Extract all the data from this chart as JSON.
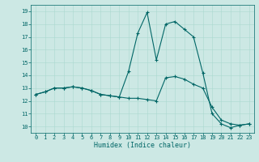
{
  "title": "",
  "xlabel": "Humidex (Indice chaleur)",
  "background_color": "#cce8e4",
  "line_color": "#006666",
  "xlim": [
    -0.5,
    23.5
  ],
  "ylim": [
    9.5,
    19.5
  ],
  "xticks": [
    0,
    1,
    2,
    3,
    4,
    5,
    6,
    7,
    8,
    9,
    10,
    11,
    12,
    13,
    14,
    15,
    16,
    17,
    18,
    19,
    20,
    21,
    22,
    23
  ],
  "yticks": [
    10,
    11,
    12,
    13,
    14,
    15,
    16,
    17,
    18,
    19
  ],
  "line1_x": [
    0,
    1,
    2,
    3,
    4,
    5,
    6,
    7,
    8,
    9,
    10,
    11,
    12,
    13,
    14,
    15,
    16,
    17,
    18,
    19,
    20,
    21,
    22,
    23
  ],
  "line1_y": [
    12.5,
    12.7,
    13.0,
    13.0,
    13.1,
    13.0,
    12.8,
    12.5,
    12.4,
    12.3,
    14.3,
    17.3,
    18.9,
    15.2,
    18.0,
    18.2,
    17.6,
    17.0,
    14.2,
    11.0,
    10.2,
    9.9,
    10.1,
    10.2
  ],
  "line2_x": [
    0,
    1,
    2,
    3,
    4,
    5,
    6,
    7,
    8,
    9,
    10,
    11,
    12,
    13,
    14,
    15,
    16,
    17,
    18,
    19,
    20,
    21,
    22,
    23
  ],
  "line2_y": [
    12.5,
    12.7,
    13.0,
    13.0,
    13.1,
    13.0,
    12.8,
    12.5,
    12.4,
    12.3,
    12.2,
    12.2,
    12.1,
    12.0,
    13.8,
    13.9,
    13.7,
    13.3,
    13.0,
    11.5,
    10.5,
    10.2,
    10.1,
    10.2
  ],
  "tick_fontsize": 5.0,
  "xlabel_fontsize": 6.0,
  "grid_color": "#aad8d0",
  "marker_size": 3.0,
  "line_width": 0.8
}
